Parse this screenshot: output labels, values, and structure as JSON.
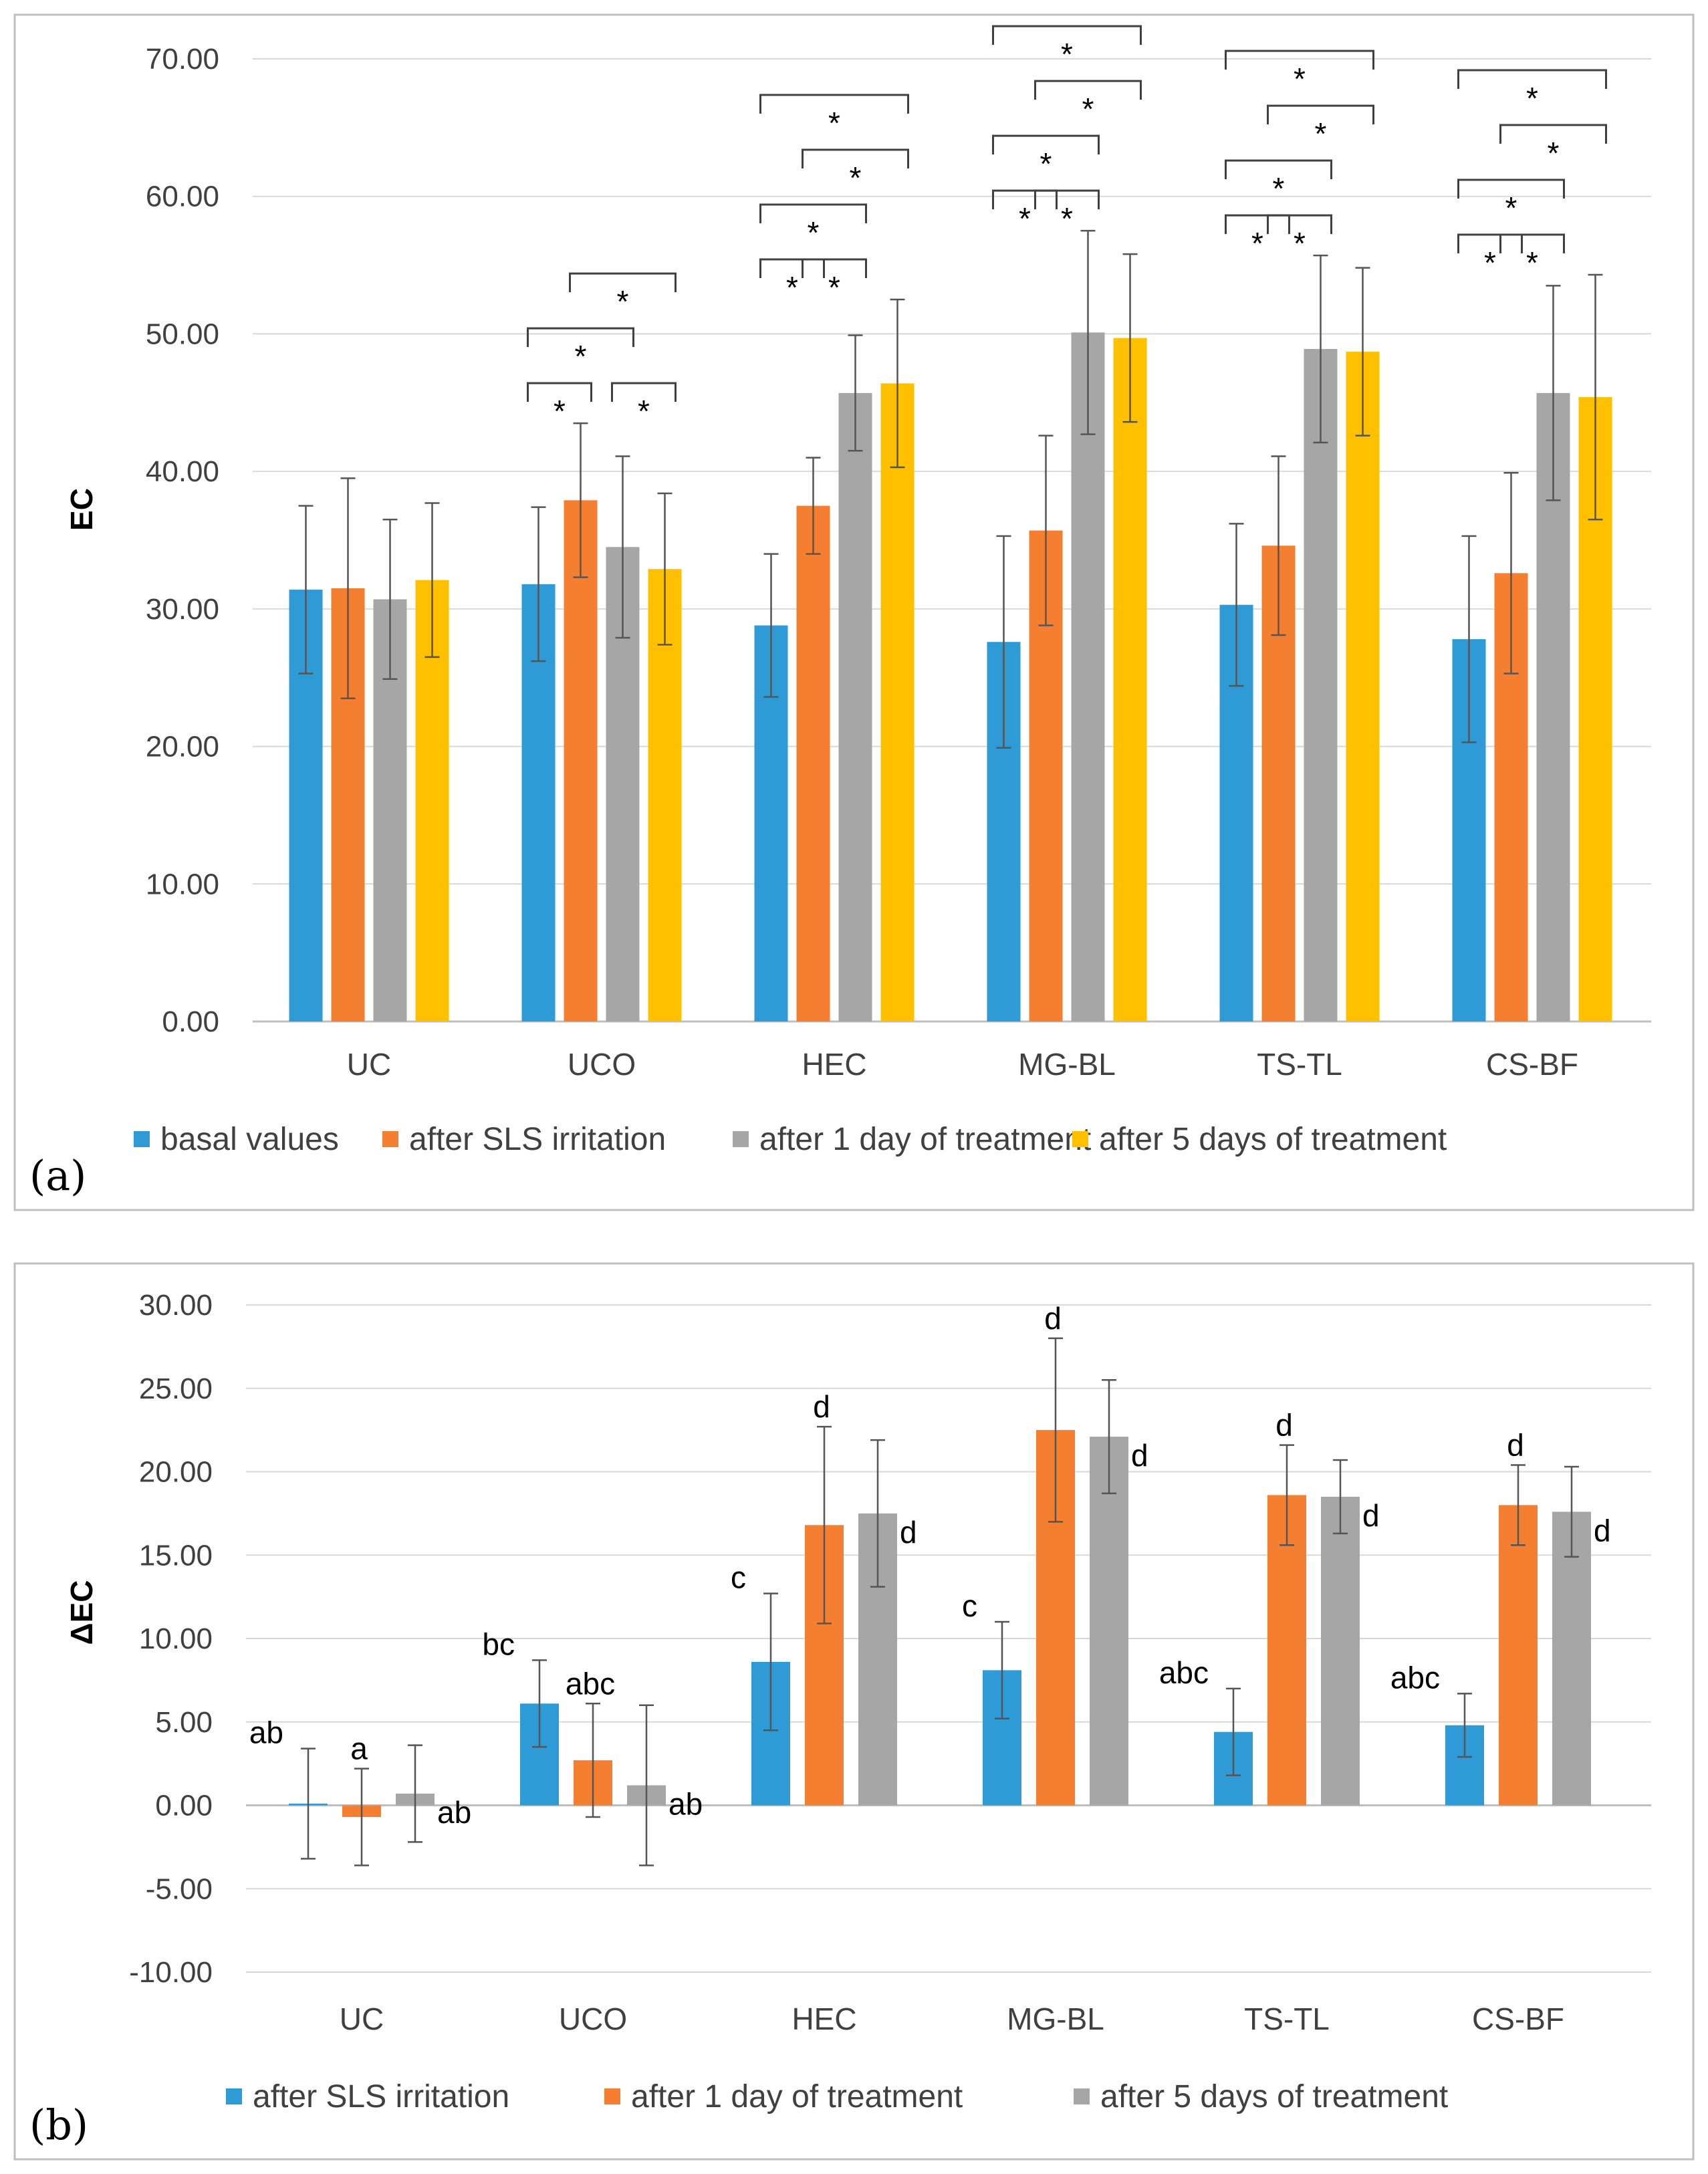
{
  "chart_data": [
    {
      "type": "bar",
      "panel_label": "(a)",
      "ylabel": "EC",
      "xlabel": "",
      "ylim": [
        0,
        70
      ],
      "yticks": [
        "0.00",
        "10.00",
        "20.00",
        "30.00",
        "40.00",
        "50.00",
        "60.00",
        "70.00"
      ],
      "categories": [
        "UC",
        "UCO",
        "HEC",
        "MG-BL",
        "TS-TL",
        "CS-BF"
      ],
      "legend_position": "bottom",
      "series": [
        {
          "name": "basal values",
          "color": "#2e9bd6",
          "values": [
            31.4,
            31.8,
            28.8,
            27.6,
            30.3,
            27.8
          ],
          "errors": [
            6.1,
            5.6,
            5.2,
            7.7,
            5.9,
            7.5
          ]
        },
        {
          "name": "after SLS irritation",
          "color": "#f47f30",
          "values": [
            31.5,
            37.9,
            37.5,
            35.7,
            34.6,
            32.6
          ],
          "errors": [
            8.0,
            5.6,
            3.5,
            6.9,
            6.5,
            7.3
          ]
        },
        {
          "name": "after 1 day of treatment",
          "color": "#a6a6a6",
          "values": [
            30.7,
            34.5,
            45.7,
            50.1,
            48.9,
            45.7
          ],
          "errors": [
            5.8,
            6.6,
            4.2,
            7.4,
            6.8,
            7.8
          ]
        },
        {
          "name": "after 5 days of treatment",
          "color": "#ffc000",
          "values": [
            32.1,
            32.9,
            46.4,
            49.7,
            48.7,
            45.4
          ],
          "errors": [
            5.6,
            5.5,
            6.1,
            6.1,
            6.1,
            8.9
          ]
        }
      ],
      "annotations": {
        "symbol": "*",
        "brackets": [
          {
            "category": 1,
            "from": 0,
            "to": 1,
            "level": 0
          },
          {
            "category": 1,
            "from": 2,
            "to": 3,
            "level": 0
          },
          {
            "category": 1,
            "from": 0,
            "to": 2,
            "level": 1
          },
          {
            "category": 1,
            "from": 1,
            "to": 3,
            "level": 2
          },
          {
            "category": 2,
            "from": 0,
            "to": 1,
            "level": 0
          },
          {
            "category": 2,
            "from": 1,
            "to": 2,
            "level": 0
          },
          {
            "category": 2,
            "from": 0,
            "to": 2,
            "level": 1
          },
          {
            "category": 2,
            "from": 1,
            "to": 3,
            "level": 2
          },
          {
            "category": 2,
            "from": 0,
            "to": 3,
            "level": 3
          },
          {
            "category": 3,
            "from": 0,
            "to": 1,
            "level": 0
          },
          {
            "category": 3,
            "from": 1,
            "to": 2,
            "level": 0
          },
          {
            "category": 3,
            "from": 0,
            "to": 2,
            "level": 1
          },
          {
            "category": 3,
            "from": 1,
            "to": 3,
            "level": 2
          },
          {
            "category": 3,
            "from": 0,
            "to": 3,
            "level": 3
          },
          {
            "category": 4,
            "from": 0,
            "to": 1,
            "level": 0
          },
          {
            "category": 4,
            "from": 1,
            "to": 2,
            "level": 0
          },
          {
            "category": 4,
            "from": 0,
            "to": 2,
            "level": 1
          },
          {
            "category": 4,
            "from": 1,
            "to": 3,
            "level": 2
          },
          {
            "category": 4,
            "from": 0,
            "to": 3,
            "level": 3
          },
          {
            "category": 5,
            "from": 0,
            "to": 1,
            "level": 0
          },
          {
            "category": 5,
            "from": 1,
            "to": 2,
            "level": 0
          },
          {
            "category": 5,
            "from": 0,
            "to": 2,
            "level": 1
          },
          {
            "category": 5,
            "from": 1,
            "to": 3,
            "level": 2
          },
          {
            "category": 5,
            "from": 0,
            "to": 3,
            "level": 3
          }
        ]
      }
    },
    {
      "type": "bar",
      "panel_label": "(b)",
      "ylabel": "ΔEC",
      "xlabel": "",
      "ylim": [
        -10,
        30
      ],
      "yticks": [
        "-10.00",
        "-5.00",
        "0.00",
        "5.00",
        "10.00",
        "15.00",
        "20.00",
        "25.00",
        "30.00"
      ],
      "categories": [
        "UC",
        "UCO",
        "HEC",
        "MG-BL",
        "TS-TL",
        "CS-BF"
      ],
      "legend_position": "bottom",
      "series": [
        {
          "name": "after SLS irritation",
          "color": "#2e9bd6",
          "values": [
            0.1,
            6.1,
            8.6,
            8.1,
            4.4,
            4.8
          ],
          "errors": [
            3.3,
            2.6,
            4.1,
            2.9,
            2.6,
            1.9
          ],
          "letters": [
            "ab",
            "bc",
            "c",
            "c",
            "abc",
            "abc"
          ]
        },
        {
          "name": "after 1 day of treatment",
          "color": "#f47f30",
          "values": [
            -0.7,
            2.7,
            16.8,
            22.5,
            18.6,
            18.0
          ],
          "errors": [
            2.9,
            3.4,
            5.9,
            5.5,
            3.0,
            2.4
          ],
          "letters": [
            "a",
            "abc",
            "d",
            "d",
            "d",
            "d"
          ]
        },
        {
          "name": "after 5 days of treatment",
          "color": "#a6a6a6",
          "values": [
            0.7,
            1.2,
            17.5,
            22.1,
            18.5,
            17.6
          ],
          "errors": [
            2.9,
            4.8,
            4.4,
            3.4,
            2.2,
            2.7
          ],
          "letters": [
            "ab",
            "ab",
            "d",
            "d",
            "d",
            "d"
          ]
        }
      ]
    }
  ]
}
